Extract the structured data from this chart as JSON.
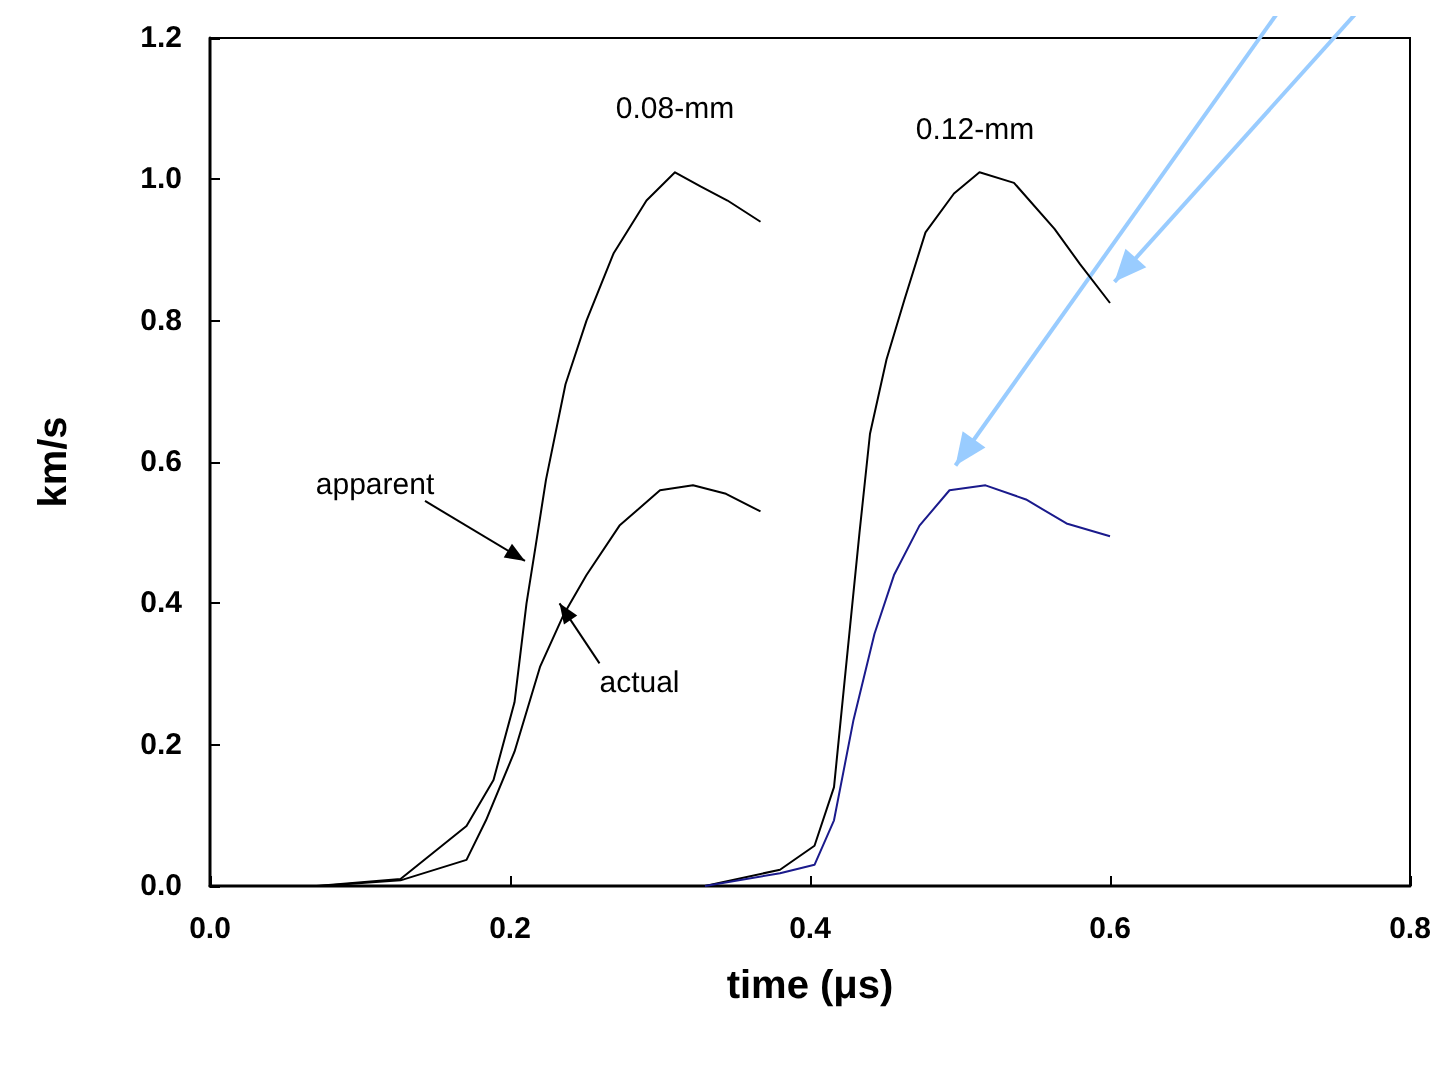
{
  "chart_data": {
    "type": "line",
    "xlabel": "time (μs)",
    "ylabel": "km/s",
    "xlim": [
      0,
      0.8
    ],
    "xticks": [
      {
        "value": 0,
        "label": "0.0"
      },
      {
        "value": 0.2,
        "label": "0.2"
      },
      {
        "value": 0.4,
        "label": "0.4"
      },
      {
        "value": 0.6,
        "label": "0.6"
      },
      {
        "value": 0.8,
        "label": "0.8"
      }
    ],
    "ylim": [
      0,
      1.2
    ],
    "yticks": [
      {
        "value": 0,
        "label": "0.0"
      },
      {
        "value": 0.2,
        "label": "0.2"
      },
      {
        "value": 0.4,
        "label": "0.4"
      },
      {
        "value": 0.6,
        "label": "0.6"
      },
      {
        "value": 0.8,
        "label": "0.8"
      },
      {
        "value": 1.0,
        "label": "1.0"
      },
      {
        "value": 1.2,
        "label": "1.2"
      }
    ],
    "grid": false,
    "marker": "none",
    "line_style": "solid",
    "series": [
      {
        "color": "#000000",
        "x": [
          0.071,
          0.127,
          0.171,
          0.189,
          0.203,
          0.211,
          0.217,
          0.224,
          0.237,
          0.251,
          0.269,
          0.291,
          0.31,
          0.327,
          0.345,
          0.367
        ],
        "values": [
          0,
          0.01,
          0.085,
          0.15,
          0.26,
          0.4,
          0.48,
          0.575,
          0.71,
          0.8,
          0.895,
          0.97,
          1.01,
          0.99,
          0.97,
          0.94
        ]
      },
      {
        "color": "#000000",
        "x": [
          0.073,
          0.127,
          0.171,
          0.184,
          0.203,
          0.22,
          0.236,
          0.251,
          0.273,
          0.3,
          0.322,
          0.344,
          0.367
        ],
        "values": [
          0,
          0.008,
          0.037,
          0.093,
          0.19,
          0.31,
          0.385,
          0.44,
          0.51,
          0.56,
          0.567,
          0.555,
          0.53
        ]
      },
      {
        "color": "#000000",
        "x": [
          0.33,
          0.38,
          0.403,
          0.416,
          0.424,
          0.433,
          0.44,
          0.451,
          0.463,
          0.477,
          0.496,
          0.513,
          0.536,
          0.563,
          0.58,
          0.6
        ],
        "values": [
          0,
          0.023,
          0.057,
          0.14,
          0.31,
          0.5,
          0.64,
          0.745,
          0.83,
          0.925,
          0.98,
          1.01,
          0.995,
          0.93,
          0.88,
          0.825
        ]
      },
      {
        "color": "#1a1a8c",
        "x": [
          0.33,
          0.38,
          0.403,
          0.416,
          0.429,
          0.443,
          0.456,
          0.473,
          0.493,
          0.517,
          0.544,
          0.571,
          0.6
        ],
        "values": [
          0,
          0.018,
          0.03,
          0.093,
          0.235,
          0.357,
          0.44,
          0.51,
          0.56,
          0.567,
          0.547,
          0.513,
          0.495
        ]
      }
    ],
    "annotations": [
      "0.08-mm",
      "0.12-mm",
      {
        "text": "apparent",
        "x": 0.21,
        "y": 0.46
      },
      {
        "text": "actual",
        "x": 0.233,
        "y": 0.4
      }
    ]
  }
}
